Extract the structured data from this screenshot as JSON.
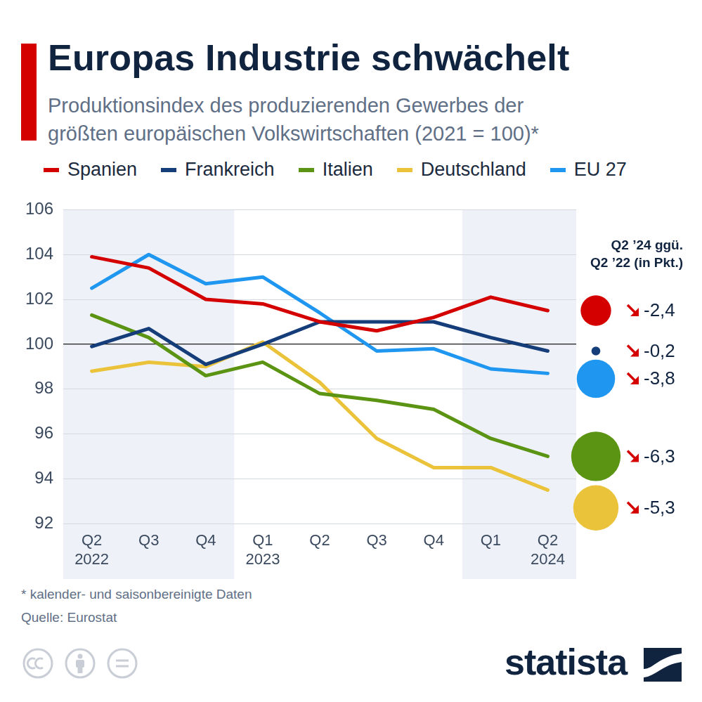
{
  "chart_data": {
    "type": "line",
    "title": "Europas Industrie schwächelt",
    "subtitle": [
      "Produktionsindex des produzierenden Gewerbes der",
      "größten europäischen Volkswirtschaften (2021 = 100)*"
    ],
    "categories": [
      [
        "Q2",
        "2022"
      ],
      "Q3",
      "Q4",
      [
        "Q1",
        "2023"
      ],
      "Q2",
      "Q3",
      "Q4",
      "Q1",
      [
        "Q2",
        "2024"
      ]
    ],
    "series": [
      {
        "name": "Spanien",
        "color": "#d40000",
        "values": [
          103.9,
          103.4,
          102.0,
          101.8,
          101.0,
          100.6,
          101.2,
          102.1,
          101.5
        ],
        "change": -2.4,
        "change_label": "-2,4"
      },
      {
        "name": "Frankreich",
        "color": "#143d7a",
        "values": [
          99.9,
          100.7,
          99.1,
          100.0,
          101.0,
          101.0,
          101.0,
          100.3,
          99.7
        ],
        "change": -0.2,
        "change_label": "-0,2"
      },
      {
        "name": "Italien",
        "color": "#5b9412",
        "values": [
          101.3,
          100.3,
          98.6,
          99.2,
          97.8,
          97.5,
          97.1,
          95.8,
          95.0
        ],
        "change": -6.3,
        "change_label": "-6,3"
      },
      {
        "name": "Deutschland",
        "color": "#ebc33a",
        "values": [
          98.8,
          99.2,
          99.0,
          100.1,
          98.3,
          95.8,
          94.5,
          94.5,
          93.5
        ],
        "change": -5.3,
        "change_label": "-5,3"
      },
      {
        "name": "EU 27",
        "color": "#1f97f0",
        "values": [
          102.5,
          104.0,
          102.7,
          103.0,
          101.4,
          99.7,
          99.8,
          98.9,
          98.7
        ],
        "change": -3.8,
        "change_label": "-3,8"
      }
    ],
    "change_title": [
      "Q2 ’24 ggü.",
      "Q2 ’22 (in Pkt.)"
    ],
    "ylim": [
      92,
      106
    ],
    "yticks": [
      92,
      94,
      96,
      98,
      100,
      102,
      104,
      106
    ],
    "baseline": 100,
    "grid": true,
    "footnote": "* kalender- und saisonbereinigte Daten",
    "source": "Quelle: Eurostat",
    "brand": "statista"
  }
}
